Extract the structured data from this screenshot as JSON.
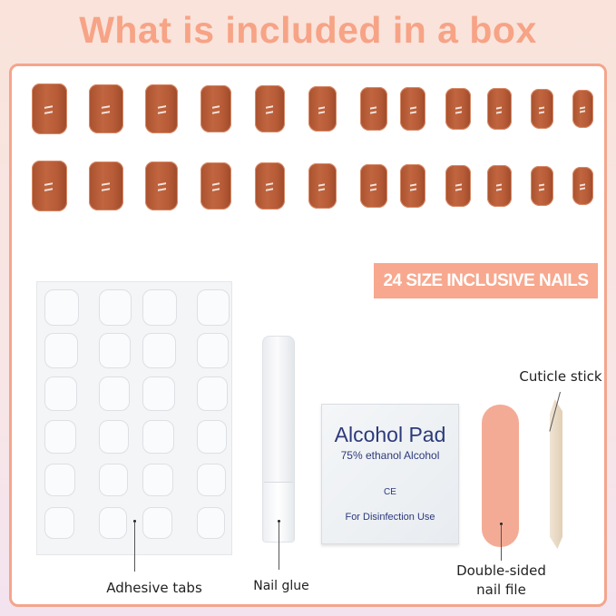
{
  "title": "What is included in a box",
  "badge": "24 SIZE INCLUSIVE NAILS",
  "colors": {
    "accent": "#f7a386",
    "nail": "#b85c38",
    "file": "#f4ab96"
  },
  "alcohol_pad": {
    "title": "Alcohol Pad",
    "subtitle": "75% ethanol Alcohol",
    "mark": "CE",
    "note": "For Disinfection Use"
  },
  "labels": {
    "adhesive": "Adhesive tabs",
    "glue": "Nail glue",
    "file_line1": "Double-sided",
    "file_line2": "nail file",
    "stick": "Cuticle stick"
  }
}
